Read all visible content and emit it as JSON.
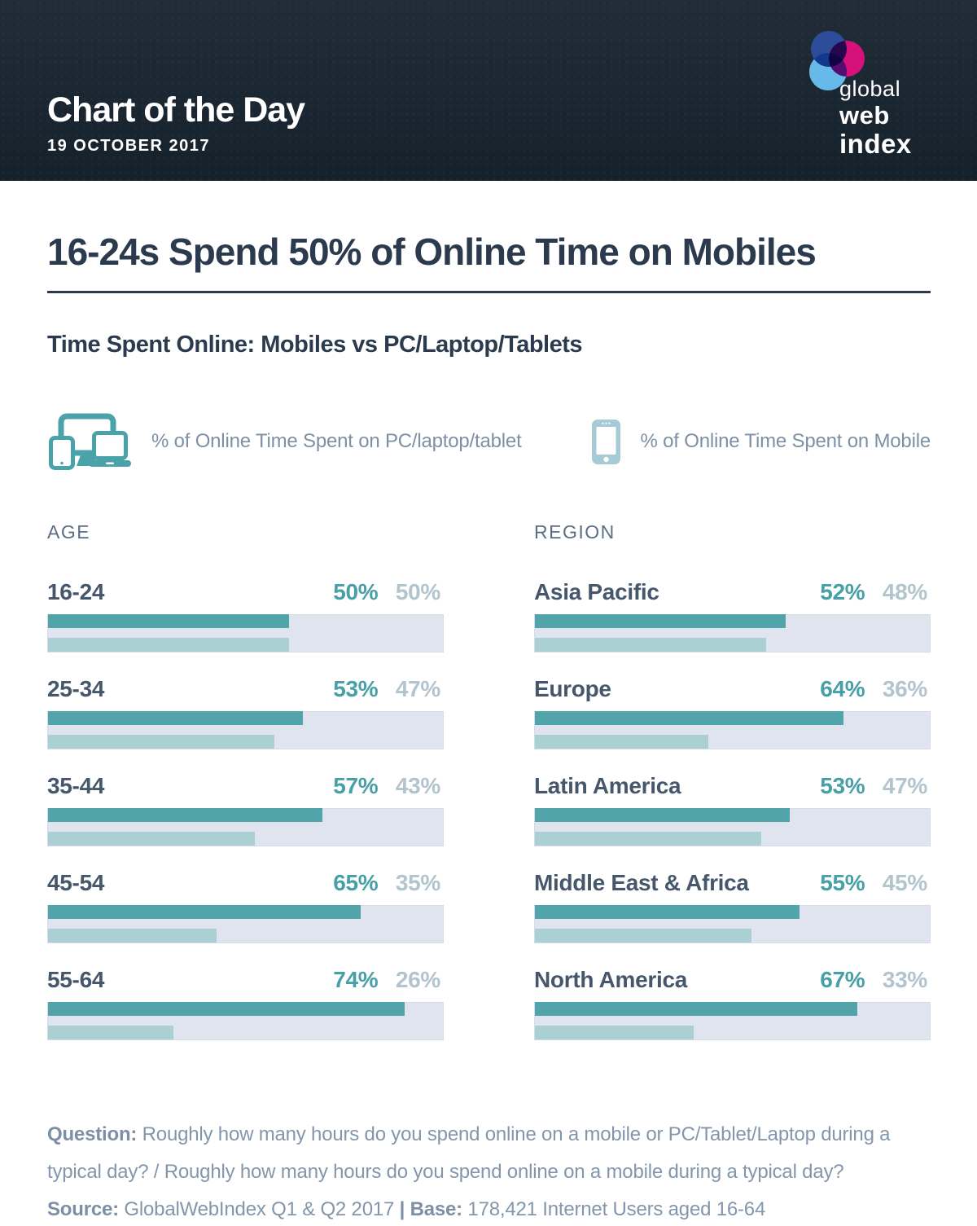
{
  "header": {
    "title": "Chart of the Day",
    "date": "19 OCTOBER 2017",
    "logo": {
      "word1": "global",
      "word2": "web",
      "word3": "index"
    }
  },
  "main": {
    "title": "16-24s Spend 50% of Online Time on Mobiles",
    "subtitle": "Time Spent Online: Mobiles vs PC/Laptop/Tablets"
  },
  "legend": {
    "pc": {
      "icon": "devices-icon",
      "label": "% of Online Time Spent on PC/laptop/tablet"
    },
    "mobile": {
      "icon": "mobile-icon",
      "label": "% of Online Time Spent on Mobile"
    }
  },
  "chart_data": {
    "type": "bar",
    "orientation": "horizontal",
    "unit": "percent",
    "xlim": [
      0,
      82
    ],
    "series": [
      {
        "name": "% of Online Time Spent on PC/laptop/tablet",
        "color": "#50a4aa"
      },
      {
        "name": "% of Online Time Spent on Mobile",
        "color": "#abd0d3"
      }
    ],
    "groups": [
      {
        "label": "AGE",
        "rows": [
          {
            "label": "16-24",
            "pc": 50,
            "mobile": 50,
            "pc_text": "50%",
            "mobile_text": "50%"
          },
          {
            "label": "25-34",
            "pc": 53,
            "mobile": 47,
            "pc_text": "53%",
            "mobile_text": "47%"
          },
          {
            "label": "35-44",
            "pc": 57,
            "mobile": 43,
            "pc_text": "57%",
            "mobile_text": "43%"
          },
          {
            "label": "45-54",
            "pc": 65,
            "mobile": 35,
            "pc_text": "65%",
            "mobile_text": "35%"
          },
          {
            "label": "55-64",
            "pc": 74,
            "mobile": 26,
            "pc_text": "74%",
            "mobile_text": "26%"
          }
        ]
      },
      {
        "label": "REGION",
        "rows": [
          {
            "label": "Asia Pacific",
            "pc": 52,
            "mobile": 48,
            "pc_text": "52%",
            "mobile_text": "48%"
          },
          {
            "label": "Europe",
            "pc": 64,
            "mobile": 36,
            "pc_text": "64%",
            "mobile_text": "36%"
          },
          {
            "label": "Latin America",
            "pc": 53,
            "mobile": 47,
            "pc_text": "53%",
            "mobile_text": "47%"
          },
          {
            "label": "Middle East & Africa",
            "pc": 55,
            "mobile": 45,
            "pc_text": "55%",
            "mobile_text": "45%"
          },
          {
            "label": "North America",
            "pc": 67,
            "mobile": 33,
            "pc_text": "67%",
            "mobile_text": "33%"
          }
        ]
      }
    ]
  },
  "footer": {
    "question_label": "Question:",
    "question_text": " Roughly how many hours do you spend online on a mobile or PC/Tablet/Laptop during a typical day? / Roughly how many hours do you spend online on a mobile during a typical day?",
    "source_label": "Source:",
    "source_text": " GlobalWebIndex Q1 & Q2 2017 ",
    "divider": "|",
    "base_label": " Base:",
    "base_text": " 178,421 Internet Users aged 16-64"
  },
  "colors": {
    "navy_text": "#2b3a4d",
    "header_bg": "#1a2631",
    "teal_bar": "#50a4aa",
    "light_teal_bar": "#abd0d3",
    "track": "#dfe4ef",
    "teal_value": "#48a0a7",
    "muted_value": "#b2c4ce",
    "gray_text": "#8496ab",
    "logo_blue": "#2d4d9b",
    "logo_magenta": "#d6117c",
    "logo_light_blue": "#66b9e8"
  }
}
